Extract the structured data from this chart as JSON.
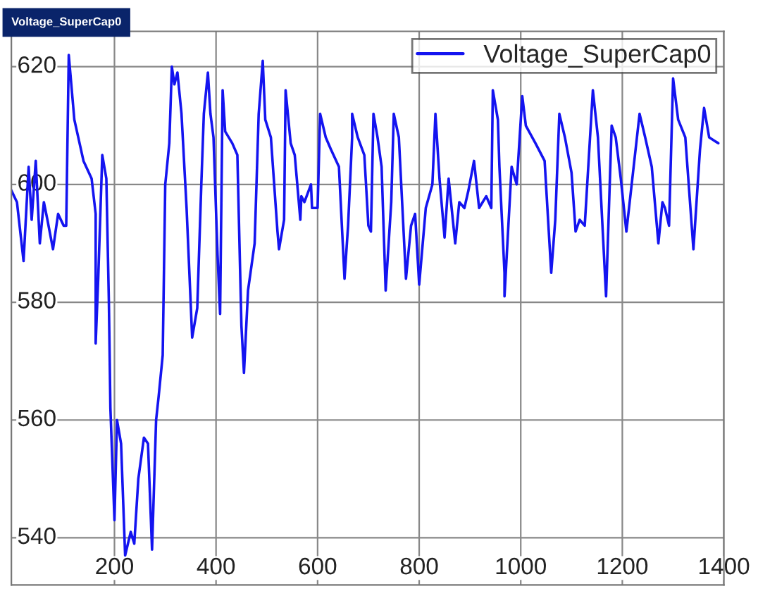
{
  "chart_data": {
    "type": "line",
    "title": "Voltage_SuperCap0",
    "x": [
      -3,
      8,
      21,
      31,
      37,
      45,
      53,
      61,
      68,
      79,
      89,
      100,
      105,
      110,
      121,
      139,
      155,
      163,
      163,
      168,
      176,
      184,
      189,
      192,
      200,
      205,
      213,
      221,
      232,
      239,
      247,
      258,
      266,
      274,
      282,
      287,
      295,
      300,
      308,
      313,
      318,
      324,
      332,
      342,
      353,
      363,
      371,
      376,
      384,
      389,
      395,
      403,
      408,
      413,
      418,
      432,
      442,
      450,
      455,
      463,
      476,
      484,
      492,
      497,
      508,
      521,
      524,
      534,
      537,
      547,
      555,
      566,
      568,
      574,
      587,
      589,
      600,
      605,
      616,
      626,
      642,
      653,
      660,
      668,
      668,
      679,
      692,
      700,
      705,
      710,
      718,
      726,
      734,
      745,
      750,
      760,
      774,
      784,
      792,
      800,
      813,
      826,
      832,
      840,
      850,
      858,
      871,
      879,
      889,
      897,
      908,
      918,
      932,
      942,
      945,
      955,
      958,
      968,
      968,
      982,
      992,
      1003,
      1010,
      1029,
      1047,
      1060,
      1068,
      1076,
      1087,
      1100,
      1108,
      1116,
      1126,
      1142,
      1152,
      1168,
      1179,
      1187,
      1197,
      1208,
      1221,
      1234,
      1245,
      1258,
      1271,
      1279,
      1284,
      1292,
      1300,
      1310,
      1324,
      1340,
      1353,
      1361,
      1371,
      1389
    ],
    "series": [
      {
        "name": "Voltage_SuperCap0",
        "color": "#1414f0",
        "values": [
          599,
          597,
          587,
          603,
          594,
          604,
          590,
          597,
          594,
          589,
          595,
          593,
          593,
          622,
          611,
          604,
          601,
          595,
          573,
          584,
          605,
          601,
          580,
          562,
          543,
          560,
          556,
          537,
          541,
          539,
          550,
          557,
          556,
          538,
          560,
          564,
          571,
          600,
          607,
          620,
          617,
          619,
          612,
          596,
          574,
          579,
          600,
          612,
          619,
          612,
          608,
          588,
          578,
          616,
          609,
          607,
          605,
          576,
          568,
          582,
          590,
          612,
          621,
          611,
          608,
          592,
          589,
          594,
          616,
          607,
          605,
          594,
          598,
          597,
          600,
          596,
          596,
          612,
          608,
          606,
          603,
          584,
          593,
          608,
          612,
          608,
          605,
          593,
          592,
          612,
          608,
          603,
          582,
          597,
          612,
          608,
          584,
          593,
          595,
          583,
          596,
          600,
          612,
          601,
          591,
          601,
          590,
          597,
          596,
          599,
          604,
          596,
          598,
          596,
          616,
          611,
          603,
          585,
          581,
          603,
          600,
          615,
          610,
          607,
          604,
          585,
          594,
          612,
          608,
          602,
          592,
          594,
          593,
          616,
          608,
          581,
          610,
          608,
          601,
          592,
          602,
          612,
          608,
          603,
          590,
          597,
          596,
          593,
          618,
          611,
          608,
          589,
          606,
          613,
          608,
          607
        ]
      }
    ],
    "xlim": [
      -3,
      1400
    ],
    "ylim": [
      532,
      626
    ],
    "xticks": [
      200,
      400,
      600,
      800,
      1000,
      1200,
      1400
    ],
    "yticks": [
      540,
      560,
      580,
      600,
      620
    ],
    "grid": true,
    "legend": "top right",
    "line_style": "solid",
    "marker": "none"
  }
}
